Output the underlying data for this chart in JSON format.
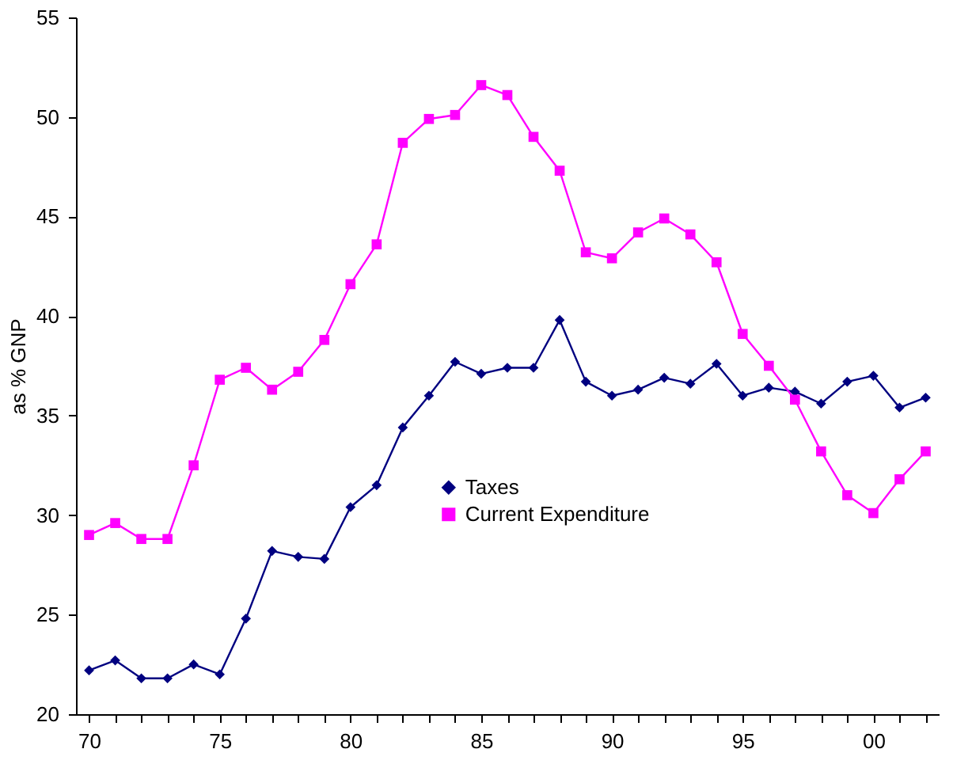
{
  "chart_data": {
    "type": "line",
    "ylabel": "as % GNP",
    "categories": [
      "70",
      null,
      null,
      null,
      null,
      "75",
      null,
      null,
      null,
      null,
      "80",
      null,
      null,
      null,
      null,
      "85",
      null,
      null,
      null,
      null,
      "90",
      null,
      null,
      null,
      null,
      "95",
      null,
      null,
      null,
      null,
      "00",
      null,
      null
    ],
    "series": [
      {
        "name": "Taxes",
        "color": "#000080",
        "marker": "diamond",
        "values": [
          22.2,
          22.7,
          21.8,
          21.8,
          22.5,
          22.0,
          24.8,
          28.2,
          27.9,
          27.8,
          30.4,
          31.5,
          34.4,
          36.0,
          37.7,
          37.1,
          37.4,
          37.4,
          39.8,
          36.7,
          36.0,
          36.3,
          36.9,
          36.6,
          37.6,
          36.0,
          36.4,
          36.2,
          35.6,
          36.7,
          37.0,
          35.4,
          35.9
        ]
      },
      {
        "name": "Current Expenditure",
        "color": "#ff00ff",
        "marker": "square",
        "values": [
          29.0,
          29.6,
          28.8,
          28.8,
          32.5,
          36.8,
          37.4,
          36.3,
          37.2,
          38.8,
          41.6,
          43.6,
          48.7,
          49.9,
          50.1,
          51.6,
          51.1,
          49.0,
          47.3,
          43.2,
          42.9,
          44.2,
          44.9,
          44.1,
          42.7,
          39.1,
          37.5,
          35.8,
          33.2,
          31.0,
          30.1,
          31.8,
          33.2
        ]
      }
    ],
    "ylim": [
      20,
      55
    ],
    "yticks": [
      20,
      25,
      30,
      35,
      40,
      45,
      50,
      55
    ],
    "grid": false,
    "legend": "center",
    "line_style": "solid"
  }
}
